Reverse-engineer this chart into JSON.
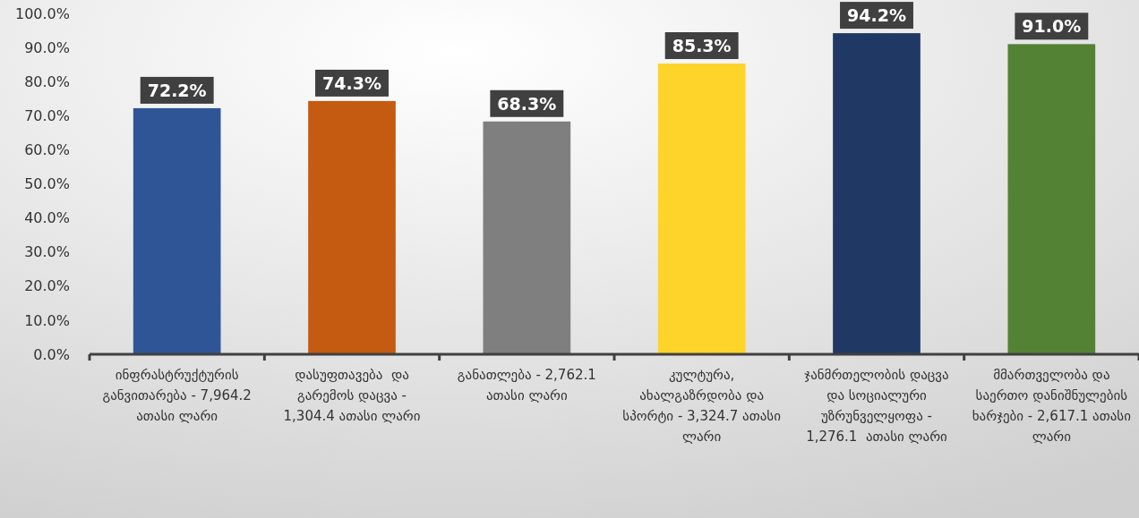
{
  "chart_data": {
    "type": "bar",
    "categories": [
      "ინფრასტრუქტურის განვითარება - 7,964.2 ათასი ლარი",
      "დასუფთავება  და გარემოს დაცვა - 1,304.4 ათასი ლარი",
      "განათლება - 2,762.1 ათასი ლარი",
      "კულტურა, ახალგაზრდობა და სპორტი - 3,324.7 ათასი ლარი",
      "ჯანმრთელობის დაცვა და სოციალური უზრუნველყოფა - 1,276.1  ათასი ლარი",
      "მმართველობა და საერთო დანიშნულების ხარჯები - 2,617.1 ათასი ლარი"
    ],
    "values": [
      72.2,
      74.3,
      68.3,
      85.3,
      94.2,
      91.0
    ],
    "colors": [
      "#2f5597",
      "#c55a11",
      "#7f7f7f",
      "#ffd42a",
      "#1f3864",
      "#548235"
    ],
    "value_labels": [
      "72.2%",
      "74.3%",
      "68.3%",
      "85.3%",
      "94.2%",
      "91.0%"
    ],
    "ylim": [
      0,
      100
    ],
    "yticks": [
      {
        "value": 0,
        "label": "0.0%"
      },
      {
        "value": 10,
        "label": "10.0%"
      },
      {
        "value": 20,
        "label": "20.0%"
      },
      {
        "value": 30,
        "label": "30.0%"
      },
      {
        "value": 40,
        "label": "40.0%"
      },
      {
        "value": 50,
        "label": "50.0%"
      },
      {
        "value": 60,
        "label": "60.0%"
      },
      {
        "value": 70,
        "label": "70.0%"
      },
      {
        "value": 80,
        "label": "80.0%"
      },
      {
        "value": 90,
        "label": "90.0%"
      },
      {
        "value": 100,
        "label": "100.0%"
      }
    ]
  }
}
